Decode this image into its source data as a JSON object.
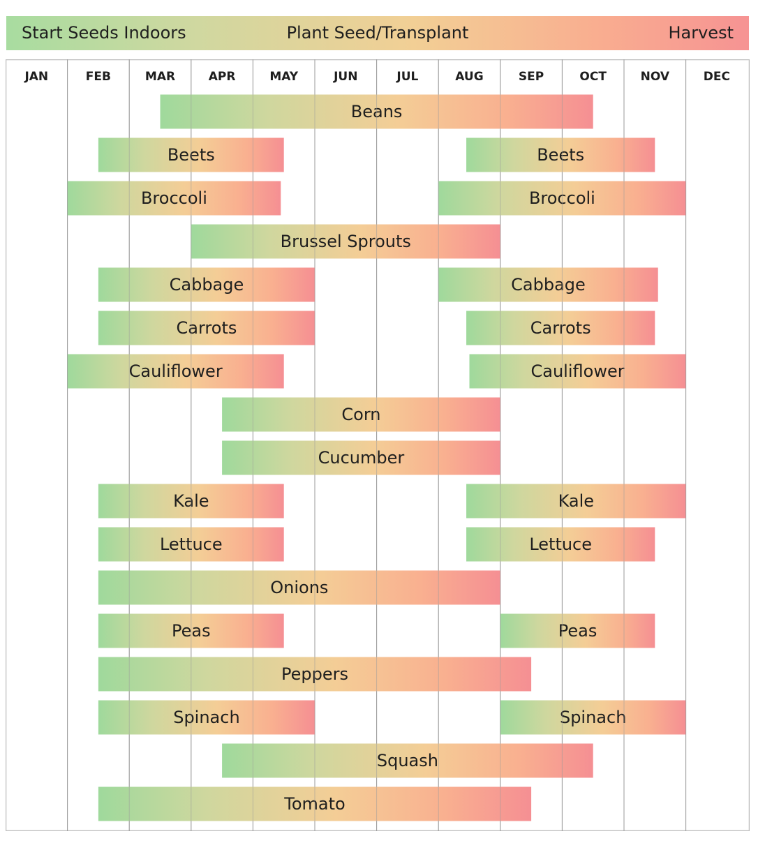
{
  "legend": {
    "start": "Start Seeds Indoors",
    "plant": "Plant Seed/Transplant",
    "harvest": "Harvest"
  },
  "colors": {
    "start_green": "#9fd99c",
    "mid_tan": "#e9d39a",
    "mid_peach": "#f9b792",
    "harvest_pink": "#f58f93",
    "grid_line": "#9a9a9a",
    "frame": "#bdbdbd"
  },
  "chart_data": {
    "type": "bar",
    "orientation": "horizontal-range",
    "x_unit": "month",
    "months": [
      "JAN",
      "FEB",
      "MAR",
      "APR",
      "MAY",
      "JUN",
      "JUL",
      "AUG",
      "SEP",
      "OCT",
      "NOV",
      "DEC"
    ],
    "xlim": [
      0,
      12
    ],
    "grid": true,
    "rows": [
      {
        "label": "Beans",
        "bars": [
          [
            2.5,
            9.5
          ]
        ]
      },
      {
        "label": "Beets",
        "bars": [
          [
            1.5,
            4.5
          ],
          [
            7.45,
            10.5
          ]
        ]
      },
      {
        "label": "Broccoli",
        "bars": [
          [
            1.0,
            4.45
          ],
          [
            7.0,
            11.0
          ]
        ]
      },
      {
        "label": "Brussel Sprouts",
        "bars": [
          [
            3.0,
            8.0
          ]
        ]
      },
      {
        "label": "Cabbage",
        "bars": [
          [
            1.5,
            5.0
          ],
          [
            7.0,
            10.55
          ]
        ]
      },
      {
        "label": "Carrots",
        "bars": [
          [
            1.5,
            5.0
          ],
          [
            7.45,
            10.5
          ]
        ]
      },
      {
        "label": "Cauliflower",
        "bars": [
          [
            1.0,
            4.5
          ],
          [
            7.5,
            11.0
          ]
        ]
      },
      {
        "label": "Corn",
        "bars": [
          [
            3.5,
            8.0
          ]
        ]
      },
      {
        "label": "Cucumber",
        "bars": [
          [
            3.5,
            8.0
          ]
        ]
      },
      {
        "label": "Kale",
        "bars": [
          [
            1.5,
            4.5
          ],
          [
            7.45,
            11.0
          ]
        ]
      },
      {
        "label": "Lettuce",
        "bars": [
          [
            1.5,
            4.5
          ],
          [
            7.45,
            10.5
          ]
        ]
      },
      {
        "label": "Onions",
        "bars": [
          [
            1.5,
            8.0
          ]
        ]
      },
      {
        "label": "Peas",
        "bars": [
          [
            1.5,
            4.5
          ],
          [
            8.0,
            10.5
          ]
        ]
      },
      {
        "label": "Peppers",
        "bars": [
          [
            1.5,
            8.5
          ]
        ]
      },
      {
        "label": "Spinach",
        "bars": [
          [
            1.5,
            5.0
          ],
          [
            8.0,
            11.0
          ]
        ]
      },
      {
        "label": "Squash",
        "bars": [
          [
            3.5,
            9.5
          ]
        ]
      },
      {
        "label": "Tomato",
        "bars": [
          [
            1.5,
            8.5
          ]
        ]
      }
    ]
  }
}
